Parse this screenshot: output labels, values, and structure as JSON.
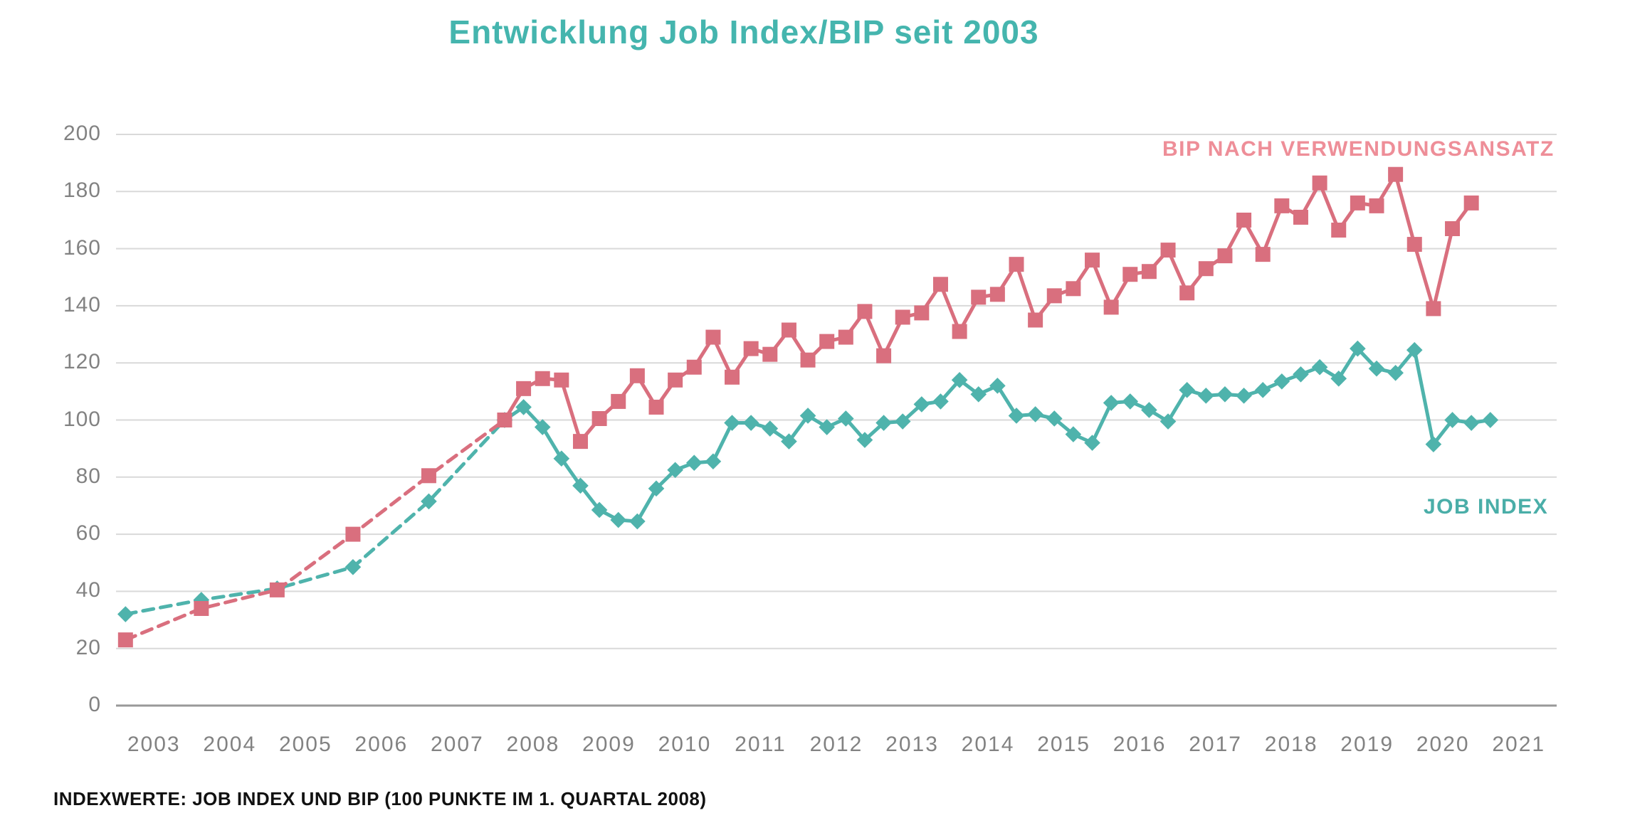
{
  "title": "Entwicklung Job Index/BIP seit 2003",
  "footnote": "INDEXWERTE: JOB INDEX UND BIP (100 PUNKTE IM 1. QUARTAL 2008)",
  "series_labels": {
    "bip": "BIP NACH VERWENDUNGSANSATZ",
    "job": "JOB INDEX"
  },
  "colors": {
    "title": "#45b5ae",
    "job_line": "#4fb3ac",
    "job_label": "#4aaea8",
    "bip_line": "#d96f7e",
    "bip_label": "#ee8e98",
    "axis_text": "#828282",
    "gridline": "#d9d9d9",
    "axis_line": "#999999"
  },
  "chart_data": {
    "type": "line",
    "title": "Entwicklung Job Index/BIP seit 2003",
    "xlabel": "",
    "ylabel": "",
    "ylim": [
      0,
      200
    ],
    "grid": "horizontal",
    "y_ticks": [
      0,
      20,
      40,
      60,
      80,
      100,
      120,
      140,
      160,
      180,
      200
    ],
    "x_years": [
      2003,
      2004,
      2005,
      2006,
      2007,
      2008,
      2009,
      2010,
      2011,
      2012,
      2013,
      2014,
      2015,
      2016,
      2017,
      2018,
      2019,
      2020,
      2021
    ],
    "annual_years": [
      2003,
      2004,
      2005,
      2006,
      2007
    ],
    "quarterly_start": "2008-Q1",
    "line_style_note": "annual 2003-2007 values drawn dashed, quarterly values from 2008-Q1 drawn solid",
    "series": [
      {
        "name": "JOB INDEX",
        "marker": "diamond",
        "color": "#4fb3ac",
        "annual": [
          32,
          37,
          41,
          48.5,
          71.5
        ],
        "quarterly": [
          100,
          104.5,
          97.5,
          86.5,
          77,
          68.5,
          65,
          64.5,
          76,
          82.5,
          85,
          85.5,
          99,
          99,
          97,
          92.5,
          101.5,
          97.5,
          100.5,
          93,
          99,
          99.5,
          105.5,
          106.5,
          114,
          109,
          112,
          101.5,
          102,
          100.5,
          95,
          92,
          106,
          106.5,
          103.5,
          99.5,
          110.5,
          108.5,
          109,
          108.5,
          110.5,
          113.5,
          116,
          118.5,
          114.5,
          125,
          118,
          116.5,
          124.5,
          91.5,
          100,
          99,
          100
        ]
      },
      {
        "name": "BIP NACH VERWENDUNGSANSATZ",
        "marker": "square",
        "color": "#d96f7e",
        "annual": [
          23,
          34,
          40.5,
          60,
          80.5
        ],
        "quarterly": [
          100,
          111,
          114.5,
          114,
          92.5,
          100.5,
          106.5,
          115.5,
          104.5,
          114,
          118.5,
          129,
          115,
          125,
          123,
          131.5,
          121,
          127.5,
          129,
          138,
          122.5,
          136,
          137.5,
          147.5,
          131,
          143,
          144,
          154.5,
          135,
          143.5,
          146,
          156,
          139.5,
          151,
          152,
          159.5,
          144.5,
          153,
          157.5,
          170,
          158,
          175,
          171,
          183,
          166.5,
          176,
          175,
          186,
          161.5,
          139,
          167,
          176
        ]
      }
    ]
  }
}
